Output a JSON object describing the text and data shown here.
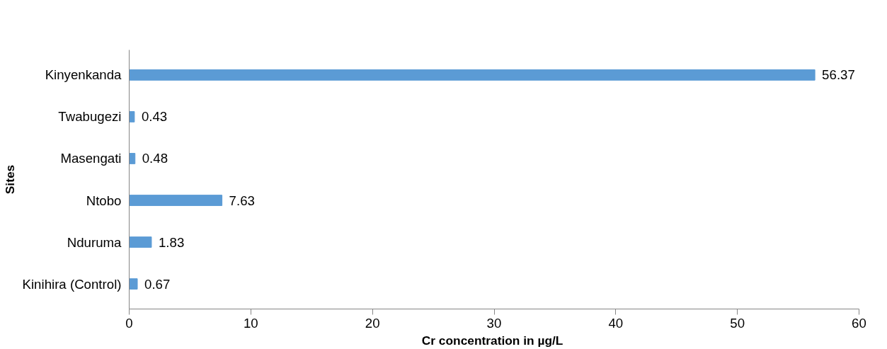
{
  "chart_data": {
    "type": "bar",
    "orientation": "horizontal",
    "xlabel": "Cr  concentration in µg/L",
    "ylabel": "Sites",
    "categories": [
      "Kinyenkanda",
      "Twabugezi",
      "Masengati",
      "Ntobo",
      "Nduruma",
      "Kinihira (Control)"
    ],
    "values": [
      56.37,
      0.43,
      0.48,
      7.63,
      1.83,
      0.67
    ],
    "color": "#5b9bd5",
    "xlim": [
      0,
      60
    ],
    "xticks": [
      0,
      10,
      20,
      30,
      40,
      50,
      60
    ],
    "grid": false,
    "data_labels": true
  }
}
